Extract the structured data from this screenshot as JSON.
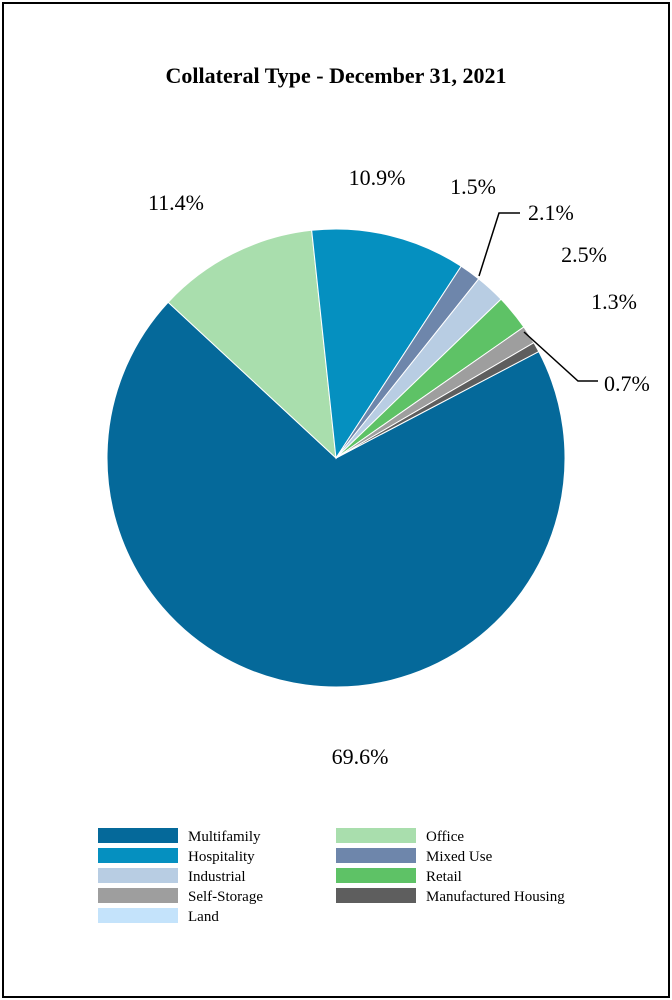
{
  "chart_data": {
    "type": "pie",
    "title": "Collateral Type - December 31, 2021",
    "legend_position": "bottom",
    "slices": [
      {
        "name": "Multifamily",
        "value": 69.6,
        "label": "69.6%",
        "color": "#05699A"
      },
      {
        "name": "Office",
        "value": 11.4,
        "label": "11.4%",
        "color": "#A9DEAD"
      },
      {
        "name": "Hospitality",
        "value": 10.9,
        "label": "10.9%",
        "color": "#0590C0"
      },
      {
        "name": "Mixed Use",
        "value": 1.5,
        "label": "1.5%",
        "color": "#6E86AB"
      },
      {
        "name": "Industrial",
        "value": 2.1,
        "label": "2.1%",
        "color": "#B8CDE3"
      },
      {
        "name": "Retail",
        "value": 2.5,
        "label": "2.5%",
        "color": "#5EC266"
      },
      {
        "name": "Self-Storage",
        "value": 1.3,
        "label": "1.3%",
        "color": "#9E9E9E"
      },
      {
        "name": "Manufactured Housing",
        "value": 0.7,
        "label": "0.7%",
        "color": "#5E5E5E"
      },
      {
        "name": "Land",
        "value": 0.0,
        "label": "",
        "color": "#C4E3FB"
      }
    ]
  }
}
